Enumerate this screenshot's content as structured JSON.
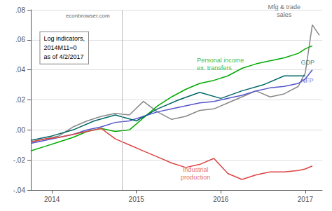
{
  "chart_data": {
    "type": "line",
    "xlim": [
      2013.75,
      2017.2
    ],
    "xticks": [
      2014,
      2015,
      2016,
      2017
    ],
    "ylim": [
      -0.04,
      0.08
    ],
    "yticks": [
      {
        "value": -0.04,
        "label": "-.04"
      },
      {
        "value": -0.02,
        "label": "-.02"
      },
      {
        "value": 0.0,
        "label": ".00"
      },
      {
        "value": 0.02,
        "label": ".02"
      },
      {
        "value": 0.04,
        "label": ".04"
      },
      {
        "value": 0.06,
        "label": ".06"
      },
      {
        "value": 0.08,
        "label": ".08"
      }
    ],
    "grid": true,
    "vlines": [
      2014.833
    ],
    "series": [
      {
        "color": "#888888",
        "x": [
          2013.75,
          2013.917,
          2014.083,
          2014.25,
          2014.417,
          2014.583,
          2014.75,
          2014.917,
          2015.083,
          2015.25,
          2015.417,
          2015.583,
          2015.75,
          2015.917,
          2016.083,
          2016.25,
          2016.417,
          2016.583,
          2016.75,
          2016.917,
          2017.0,
          2017.083,
          2017.167
        ],
        "values": [
          -0.008,
          -0.006,
          -0.004,
          0.002,
          0.006,
          0.009,
          0.011,
          0.01,
          0.019,
          0.012,
          0.007,
          0.009,
          0.013,
          0.014,
          0.018,
          0.022,
          0.026,
          0.022,
          0.024,
          0.029,
          0.038,
          0.07,
          0.063
        ]
      },
      {
        "color": "#00aa00",
        "x": [
          2013.75,
          2013.917,
          2014.083,
          2014.25,
          2014.417,
          2014.583,
          2014.75,
          2014.917,
          2015.083,
          2015.25,
          2015.417,
          2015.583,
          2015.75,
          2015.917,
          2016.083,
          2016.25,
          2016.417,
          2016.583,
          2016.75,
          2016.917,
          2017.0,
          2017.083
        ],
        "values": [
          -0.014,
          -0.011,
          -0.008,
          -0.005,
          -0.001,
          0.001,
          -0.001,
          0.0,
          0.008,
          0.016,
          0.022,
          0.027,
          0.031,
          0.033,
          0.036,
          0.041,
          0.044,
          0.046,
          0.048,
          0.051,
          0.054,
          0.056
        ]
      },
      {
        "color": "#5555cc",
        "x": [
          2013.75,
          2013.917,
          2014.083,
          2014.25,
          2014.417,
          2014.583,
          2014.75,
          2014.917,
          2015.083,
          2015.25,
          2015.417,
          2015.583,
          2015.75,
          2015.917,
          2016.083,
          2016.25,
          2016.417,
          2016.583,
          2016.75,
          2016.917,
          2017.0,
          2017.083
        ],
        "values": [
          -0.009,
          -0.007,
          -0.005,
          -0.003,
          0.0,
          0.002,
          0.005,
          0.006,
          0.009,
          0.012,
          0.014,
          0.016,
          0.018,
          0.019,
          0.021,
          0.023,
          0.026,
          0.028,
          0.029,
          0.031,
          0.034,
          0.04
        ]
      },
      {
        "color": "#006666",
        "x": [
          2013.75,
          2014.0,
          2014.25,
          2014.5,
          2014.75,
          2015.0,
          2015.25,
          2015.5,
          2015.75,
          2016.0,
          2016.25,
          2016.5,
          2016.75,
          2017.0
        ],
        "values": [
          -0.007,
          -0.004,
          0.0,
          0.006,
          0.01,
          0.006,
          0.014,
          0.02,
          0.025,
          0.021,
          0.026,
          0.03,
          0.036,
          0.036
        ]
      },
      {
        "color": "#dd4444",
        "x": [
          2013.75,
          2013.917,
          2014.083,
          2014.25,
          2014.417,
          2014.583,
          2014.75,
          2014.917,
          2015.083,
          2015.25,
          2015.417,
          2015.583,
          2015.75,
          2015.917,
          2016.083,
          2016.25,
          2016.417,
          2016.583,
          2016.75,
          2016.917,
          2017.0,
          2017.083
        ],
        "values": [
          -0.008,
          -0.006,
          -0.005,
          -0.003,
          -0.001,
          0.001,
          -0.006,
          -0.01,
          -0.014,
          -0.018,
          -0.022,
          -0.025,
          -0.023,
          -0.019,
          -0.029,
          -0.033,
          -0.03,
          -0.028,
          -0.028,
          -0.027,
          -0.026,
          -0.024
        ]
      }
    ],
    "annotations": [
      {
        "text": "econbrowser.com"
      },
      {
        "text": "Log indicators,\n2014M11=0\nas of 4/2/2017"
      },
      {
        "text": "Mfg & trade\nsales",
        "x": 2016.75,
        "y": 0.073,
        "color": "#444444"
      },
      {
        "text": "Personal income\nex. transfers",
        "x": 2015.7,
        "y": 0.044,
        "color": "#00aa00"
      },
      {
        "text": "GDP",
        "x": 2016.93,
        "y": 0.045,
        "color": "#006666"
      },
      {
        "text": "NFP",
        "x": 2016.93,
        "y": 0.033,
        "color": "#5555cc"
      },
      {
        "text": "Industrial\nproduction",
        "x": 2015.7,
        "y": -0.029,
        "color": "#dd4444"
      }
    ]
  }
}
